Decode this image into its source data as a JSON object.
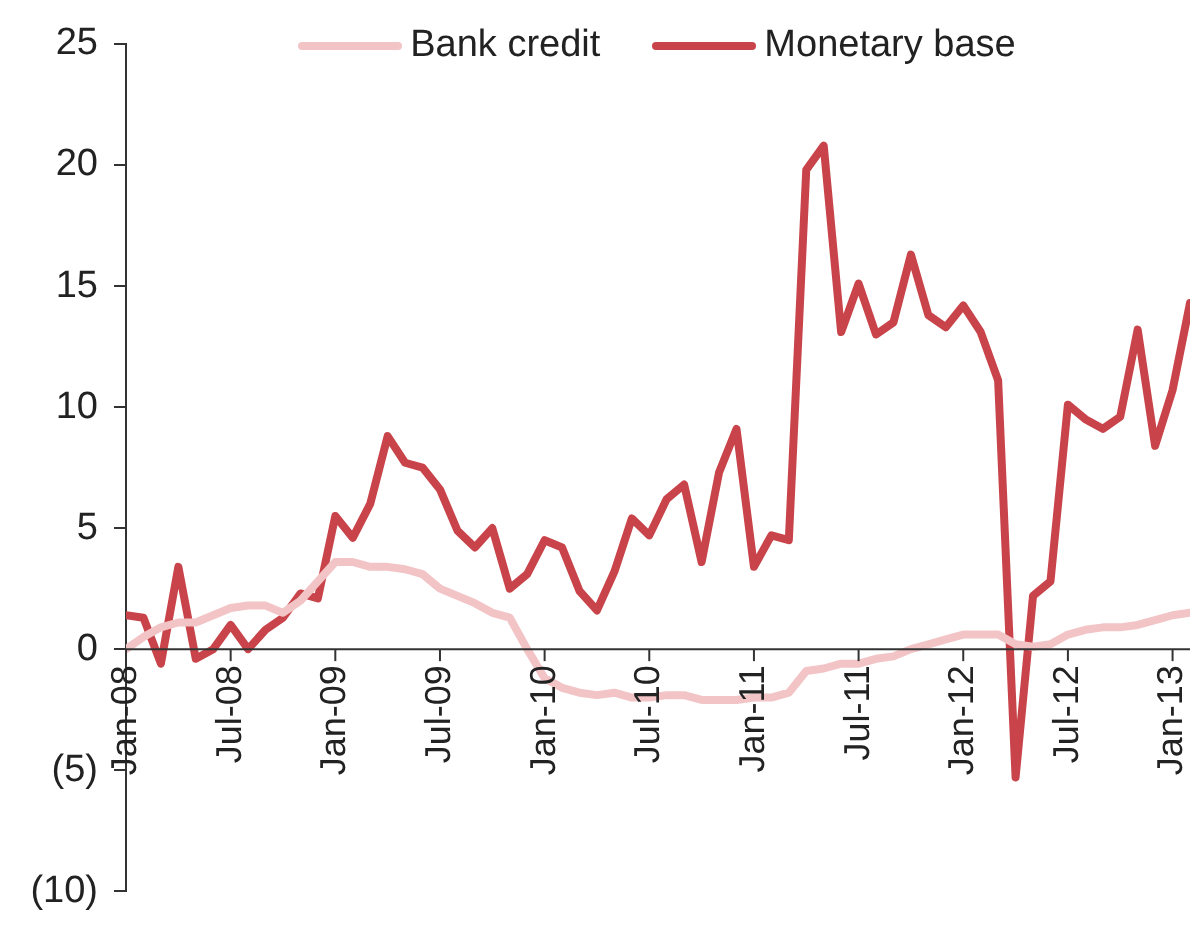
{
  "chart_data": {
    "type": "line",
    "x": [
      "2008-01",
      "2008-02",
      "2008-03",
      "2008-04",
      "2008-05",
      "2008-06",
      "2008-07",
      "2008-08",
      "2008-09",
      "2008-10",
      "2008-11",
      "2008-12",
      "2009-01",
      "2009-02",
      "2009-03",
      "2009-04",
      "2009-05",
      "2009-06",
      "2009-07",
      "2009-08",
      "2009-09",
      "2009-10",
      "2009-11",
      "2009-12",
      "2010-01",
      "2010-02",
      "2010-03",
      "2010-04",
      "2010-05",
      "2010-06",
      "2010-07",
      "2010-08",
      "2010-09",
      "2010-10",
      "2010-11",
      "2010-12",
      "2011-01",
      "2011-02",
      "2011-03",
      "2011-04",
      "2011-05",
      "2011-06",
      "2011-07",
      "2011-08",
      "2011-09",
      "2011-10",
      "2011-11",
      "2011-12",
      "2012-01",
      "2012-02",
      "2012-03",
      "2012-04",
      "2012-05",
      "2012-06",
      "2012-07",
      "2012-08",
      "2012-09",
      "2012-10",
      "2012-11",
      "2012-12",
      "2013-01",
      "2013-02"
    ],
    "series": [
      {
        "name": "Bank credit",
        "color": "#f2c4c6",
        "values": [
          0,
          0.5,
          0.9,
          1.1,
          1.1,
          1.4,
          1.7,
          1.8,
          1.8,
          1.5,
          2.0,
          2.8,
          3.6,
          3.6,
          3.4,
          3.4,
          3.3,
          3.1,
          2.5,
          2.2,
          1.9,
          1.5,
          1.3,
          0,
          -1.2,
          -1.6,
          -1.8,
          -1.9,
          -1.8,
          -2.0,
          -2.0,
          -1.9,
          -1.9,
          -2.1,
          -2.1,
          -2.1,
          -2.0,
          -2.0,
          -1.8,
          -0.9,
          -0.8,
          -0.6,
          -0.6,
          -0.4,
          -0.3,
          0,
          0.2,
          0.4,
          0.6,
          0.6,
          0.6,
          0.2,
          0.1,
          0.2,
          0.6,
          0.8,
          0.9,
          0.9,
          1.0,
          1.2,
          1.4,
          1.5
        ]
      },
      {
        "name": "Monetary base",
        "color": "#c8444a",
        "values": [
          1.4,
          1.3,
          -0.6,
          3.4,
          -0.4,
          0,
          1.0,
          0,
          0.8,
          1.3,
          2.3,
          2.1,
          5.5,
          4.6,
          6.0,
          8.8,
          7.7,
          7.5,
          6.6,
          4.9,
          4.2,
          5.0,
          2.5,
          3.1,
          4.5,
          4.2,
          2.4,
          1.6,
          3.2,
          5.4,
          4.7,
          6.2,
          6.8,
          3.6,
          7.3,
          9.1,
          3.4,
          4.7,
          4.5,
          19.8,
          20.8,
          13.1,
          15.1,
          13.0,
          13.5,
          16.3,
          13.8,
          13.3,
          14.2,
          13.1,
          11.1,
          -5.3,
          2.2,
          2.8,
          10.1,
          9.5,
          9.1,
          9.6,
          13.2,
          8.4,
          10.7,
          14.3
        ]
      }
    ],
    "xlim": [
      "2008-01",
      "2013-02"
    ],
    "xticks": [
      {
        "value": "2008-01",
        "label": "Jan-08"
      },
      {
        "value": "2008-07",
        "label": "Jul-08"
      },
      {
        "value": "2009-01",
        "label": "Jan-09"
      },
      {
        "value": "2009-07",
        "label": "Jul-09"
      },
      {
        "value": "2010-01",
        "label": "Jan-10"
      },
      {
        "value": "2010-07",
        "label": "Jul-10"
      },
      {
        "value": "2011-01",
        "label": "Jan-11"
      },
      {
        "value": "2011-07",
        "label": "Jul-11"
      },
      {
        "value": "2012-01",
        "label": "Jan-12"
      },
      {
        "value": "2012-07",
        "label": "Jul-12"
      },
      {
        "value": "2013-01",
        "label": "Jan-13"
      }
    ],
    "ylim": [
      -10,
      25
    ],
    "yticks": [
      {
        "value": -10,
        "label": "(10)"
      },
      {
        "value": -5,
        "label": "(5)"
      },
      0,
      5,
      10,
      15,
      20,
      25
    ],
    "grid": false,
    "legend": "top",
    "marker": "none",
    "line_style": "solid"
  }
}
